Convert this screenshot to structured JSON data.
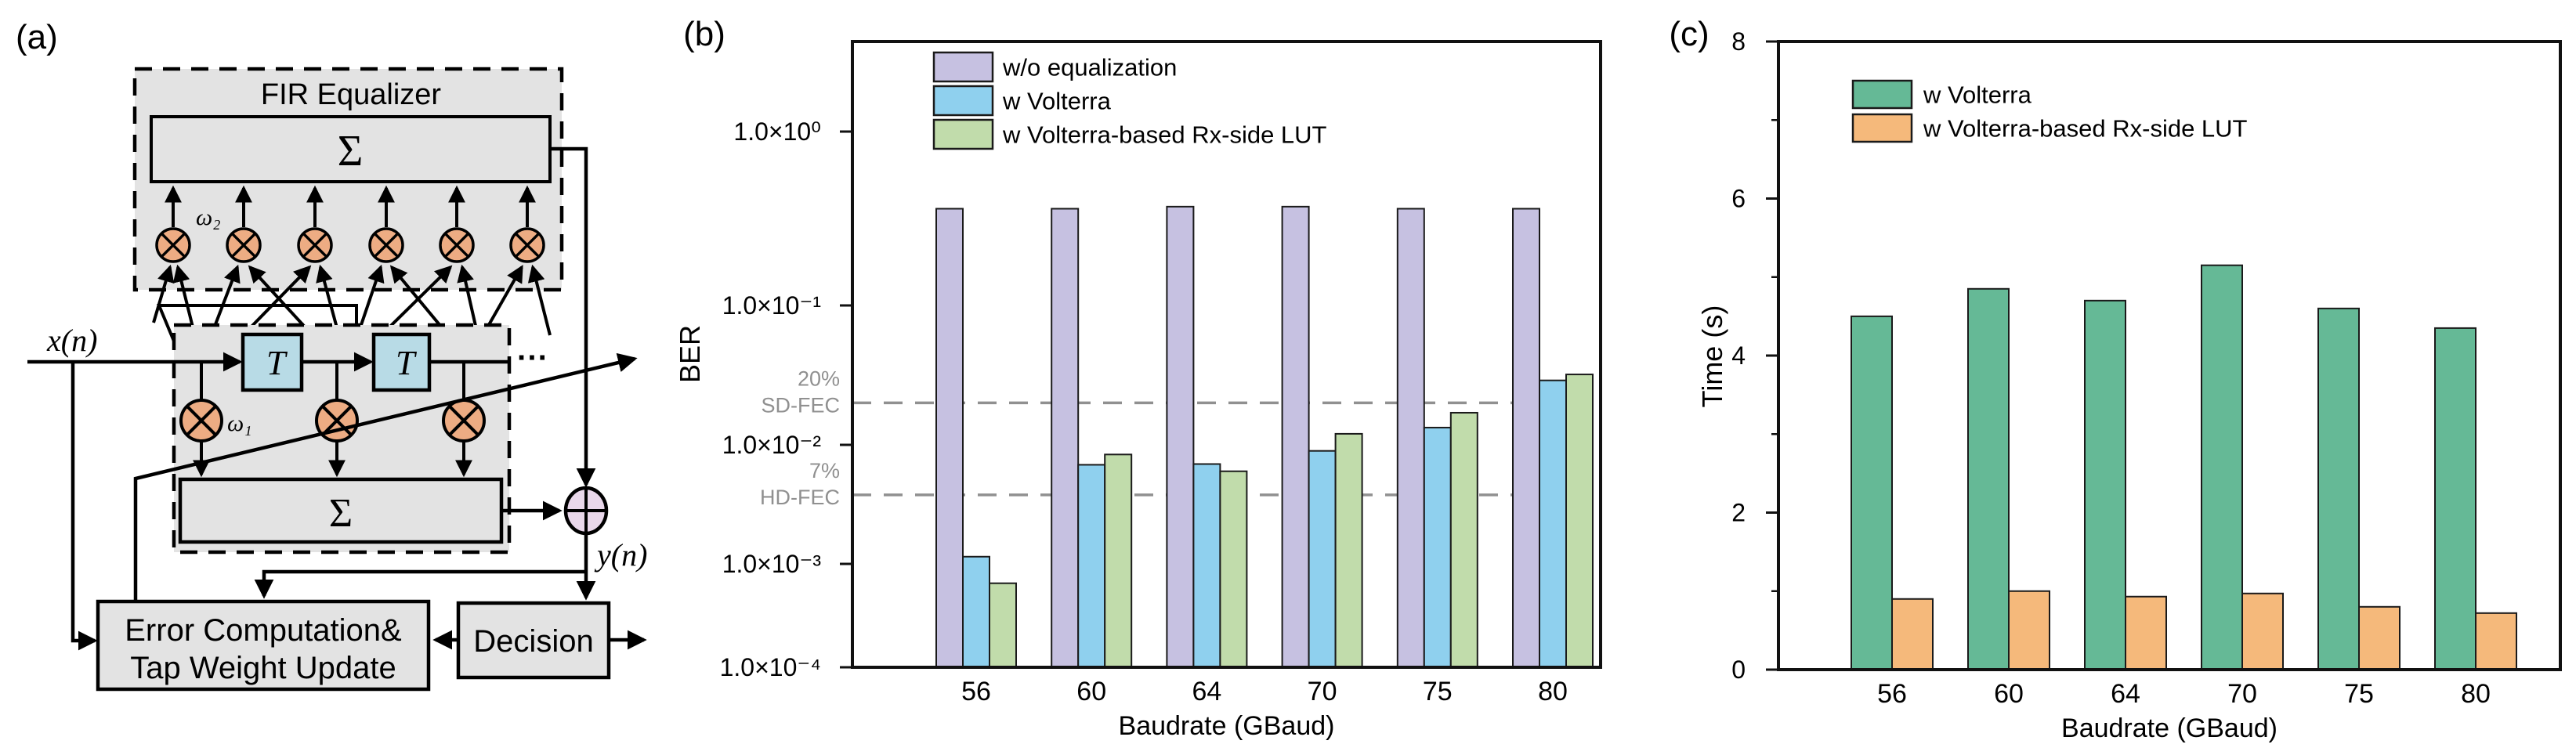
{
  "diagram": {
    "panel_label": "(a)",
    "fir_title": "FIR Equalizer",
    "sum_symbol": "Σ",
    "weight2": "ω₂",
    "weight1": "ω₁",
    "delay_symbol": "T",
    "input_signal": "x(n)",
    "output_signal": "y(n)",
    "ellipsis": "···",
    "error_box_line1": "Error Computation&",
    "error_box_line2": "Tap Weight Update",
    "decision_label": "Decision",
    "colors": {
      "box_fill": "#e3e3e3",
      "delay_fill": "#b8dbe6",
      "mult_fill": "#edac83",
      "adder_fill": "#e9d7ea",
      "line": "#000000"
    }
  },
  "chart_data": [
    {
      "id": "b",
      "type": "bar",
      "panel_label": "(b)",
      "categories": [
        "56",
        "60",
        "64",
        "70",
        "75",
        "80"
      ],
      "xlabel": "Baudrate (GBaud)",
      "ylabel": "BER",
      "yscale": "log",
      "ylim": [
        0.0001,
        2.0
      ],
      "ytick_values": [
        1,
        0.1,
        0.01,
        0.001,
        0.0001
      ],
      "ytick_labels": [
        "1.0×10⁰",
        "1.0×10⁻¹",
        "1.0×10⁻²",
        "1.0×10⁻³",
        "1.0×10⁻⁴"
      ],
      "grid": false,
      "legend_position": "top-left",
      "series": [
        {
          "name": "w/o equalization",
          "color": "#c6c1e1",
          "values": [
            0.36,
            0.36,
            0.37,
            0.37,
            0.36,
            0.36
          ]
        },
        {
          "name": "w Volterra",
          "color": "#8fd0ee",
          "values": [
            0.00115,
            0.0068,
            0.0069,
            0.0089,
            0.0133,
            0.029
          ]
        },
        {
          "name": "w Volterra-based Rx-side LUT",
          "color": "#c1dcab",
          "values": [
            0.00065,
            0.0083,
            0.006,
            0.012,
            0.017,
            0.032
          ]
        }
      ],
      "thresholds": [
        {
          "label_line1": "20%",
          "label_line2": "SD-FEC",
          "value": 0.02,
          "color": "#909090"
        },
        {
          "label_line1": "7%",
          "label_line2": "HD-FEC",
          "value": 0.0038,
          "color": "#909090"
        }
      ]
    },
    {
      "id": "c",
      "type": "bar",
      "panel_label": "(c)",
      "categories": [
        "56",
        "60",
        "64",
        "70",
        "75",
        "80"
      ],
      "xlabel": "Baudrate (GBaud)",
      "ylabel": "Time (s)",
      "yscale": "linear",
      "ylim": [
        0,
        8
      ],
      "ytick_values": [
        0,
        2,
        4,
        6,
        8
      ],
      "ytick_labels": [
        "0",
        "2",
        "4",
        "6",
        "8"
      ],
      "ytick_minor": [
        1,
        3,
        5,
        7
      ],
      "grid": false,
      "legend_position": "top-left",
      "series": [
        {
          "name": "w Volterra",
          "color": "#65b996",
          "values": [
            4.5,
            4.85,
            4.7,
            5.15,
            4.6,
            4.35
          ]
        },
        {
          "name": "w Volterra-based Rx-side LUT",
          "color": "#f5b97b",
          "values": [
            0.9,
            1.0,
            0.93,
            0.97,
            0.8,
            0.72
          ]
        }
      ]
    }
  ]
}
